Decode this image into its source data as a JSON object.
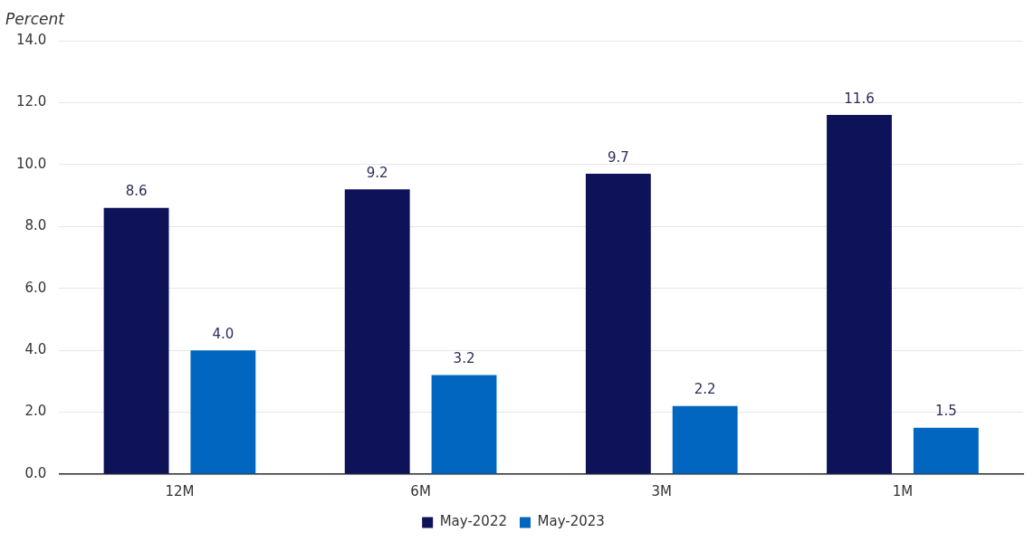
{
  "chart_data": {
    "type": "bar",
    "ylabel": "Percent",
    "categories": [
      "12M",
      "6M",
      "3M",
      "1M"
    ],
    "series": [
      {
        "name": "May-2022",
        "color": "#0d1259",
        "values": [
          8.6,
          9.2,
          9.7,
          11.6
        ],
        "value_labels": [
          "8.6",
          "9.2",
          "9.7",
          "11.6"
        ]
      },
      {
        "name": "May-2023",
        "color": "#0066c0",
        "values": [
          4.0,
          3.2,
          2.2,
          1.5
        ],
        "value_labels": [
          "4.0",
          "3.2",
          "2.2",
          "1.5"
        ]
      }
    ],
    "ylim": [
      0,
      14
    ],
    "yticks": [
      {
        "value": 0,
        "label": "0.0"
      },
      {
        "value": 2,
        "label": "2.0"
      },
      {
        "value": 4,
        "label": "4.0"
      },
      {
        "value": 6,
        "label": "6.0"
      },
      {
        "value": 8,
        "label": "8.0"
      },
      {
        "value": 10,
        "label": "10.0"
      },
      {
        "value": 12,
        "label": "12.0"
      },
      {
        "value": 14,
        "label": "14.0"
      }
    ],
    "grid": "y",
    "legend": "bottom"
  }
}
